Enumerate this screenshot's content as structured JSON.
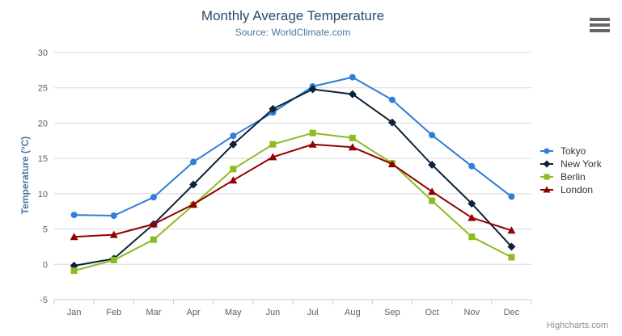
{
  "chart_data": {
    "type": "line",
    "title": "Monthly Average Temperature",
    "subtitle": "Source: WorldClimate.com",
    "credit": "Highcharts.com",
    "xlabel": "",
    "ylabel": "Temperature (°C)",
    "categories": [
      "Jan",
      "Feb",
      "Mar",
      "Apr",
      "May",
      "Jun",
      "Jul",
      "Aug",
      "Sep",
      "Oct",
      "Nov",
      "Dec"
    ],
    "ylim": [
      -5,
      30
    ],
    "ytick_step": 5,
    "grid": true,
    "legend_position": "right",
    "series": [
      {
        "name": "Tokyo",
        "color": "#2f7ed8",
        "marker": "circle",
        "values": [
          7.0,
          6.9,
          9.5,
          14.5,
          18.2,
          21.5,
          25.2,
          26.5,
          23.3,
          18.3,
          13.9,
          9.6
        ]
      },
      {
        "name": "New York",
        "color": "#0d233a",
        "marker": "diamond",
        "values": [
          -0.2,
          0.8,
          5.7,
          11.3,
          17.0,
          22.0,
          24.8,
          24.1,
          20.1,
          14.1,
          8.6,
          2.5
        ]
      },
      {
        "name": "Berlin",
        "color": "#8bbc21",
        "marker": "square",
        "values": [
          -0.9,
          0.6,
          3.5,
          8.4,
          13.5,
          17.0,
          18.6,
          17.9,
          14.3,
          9.0,
          3.9,
          1.0
        ]
      },
      {
        "name": "London",
        "color": "#910000",
        "marker": "triangle",
        "values": [
          3.9,
          4.2,
          5.7,
          8.5,
          11.9,
          15.2,
          17.0,
          16.6,
          14.2,
          10.3,
          6.6,
          4.8
        ]
      }
    ],
    "colors": {
      "title": "#274b6d",
      "subtitle": "#4d759e",
      "axis_title": "#4d759e",
      "tick_label": "#606060",
      "gridline": "#d8d8d8",
      "axis_line": "#c0d0e0",
      "legend_text": "#333333",
      "credit": "#909090",
      "menu_icon": "#666666"
    },
    "menu_icon": "hamburger-icon"
  }
}
